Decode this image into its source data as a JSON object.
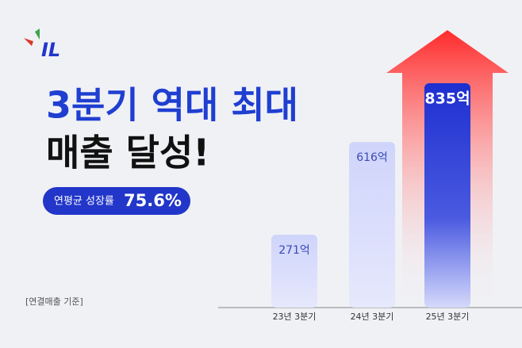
{
  "logo": "IL",
  "chart_data": {
    "type": "bar",
    "title_lines": [
      "3분기 역대 최대",
      "매출 달성!"
    ],
    "badge": {
      "label": "연평균 성장률",
      "value": "75.6%"
    },
    "note": "[연결매출 기준]",
    "categories": [
      "23년 3분기",
      "24년 3분기",
      "25년 3분기"
    ],
    "values": [
      271,
      616,
      835
    ],
    "value_labels": [
      "271억",
      "616억",
      "835억"
    ],
    "colors": [
      "#d5d9fb",
      "#d5d9fb",
      "#2536d4"
    ],
    "highlight_color": "#ff2a2a"
  }
}
